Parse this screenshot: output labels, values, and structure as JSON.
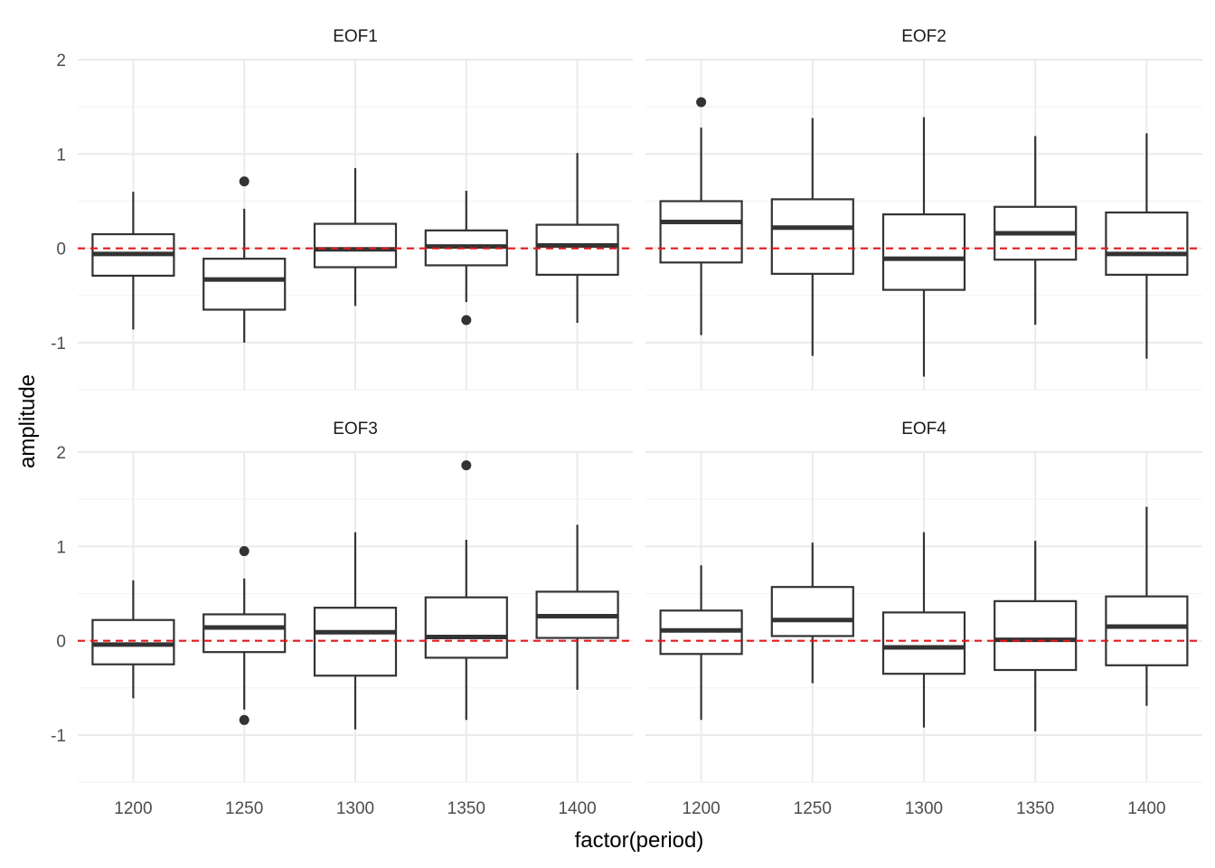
{
  "chart_data": {
    "type": "boxplot",
    "xlabel": "factor(period)",
    "ylabel": "amplitude",
    "categories": [
      "1200",
      "1250",
      "1300",
      "1350",
      "1400"
    ],
    "ylim": [
      -1.5,
      2.0
    ],
    "yticks": [
      -1,
      0,
      1,
      2
    ],
    "grid": true,
    "reference_line": {
      "y": 0,
      "color": "#e31a1c",
      "style": "dashed"
    },
    "box_color": "#333333",
    "facets": [
      {
        "title": "EOF1",
        "boxes": [
          {
            "category": "1200",
            "lower_whisker": -0.86,
            "q1": -0.29,
            "median": -0.06,
            "q3": 0.15,
            "upper_whisker": 0.6,
            "outliers": []
          },
          {
            "category": "1250",
            "lower_whisker": -1.0,
            "q1": -0.65,
            "median": -0.33,
            "q3": -0.11,
            "upper_whisker": 0.42,
            "outliers": [
              0.71
            ]
          },
          {
            "category": "1300",
            "lower_whisker": -0.61,
            "q1": -0.2,
            "median": -0.01,
            "q3": 0.26,
            "upper_whisker": 0.85,
            "outliers": []
          },
          {
            "category": "1350",
            "lower_whisker": -0.57,
            "q1": -0.18,
            "median": 0.02,
            "q3": 0.19,
            "upper_whisker": 0.61,
            "outliers": [
              -0.76
            ]
          },
          {
            "category": "1400",
            "lower_whisker": -0.79,
            "q1": -0.28,
            "median": 0.03,
            "q3": 0.25,
            "upper_whisker": 1.01,
            "outliers": []
          }
        ]
      },
      {
        "title": "EOF2",
        "boxes": [
          {
            "category": "1200",
            "lower_whisker": -0.92,
            "q1": -0.15,
            "median": 0.28,
            "q3": 0.5,
            "upper_whisker": 1.28,
            "outliers": [
              1.55
            ]
          },
          {
            "category": "1250",
            "lower_whisker": -1.14,
            "q1": -0.27,
            "median": 0.22,
            "q3": 0.52,
            "upper_whisker": 1.38,
            "outliers": []
          },
          {
            "category": "1300",
            "lower_whisker": -1.36,
            "q1": -0.44,
            "median": -0.11,
            "q3": 0.36,
            "upper_whisker": 1.39,
            "outliers": []
          },
          {
            "category": "1350",
            "lower_whisker": -0.81,
            "q1": -0.12,
            "median": 0.16,
            "q3": 0.44,
            "upper_whisker": 1.19,
            "outliers": []
          },
          {
            "category": "1400",
            "lower_whisker": -1.17,
            "q1": -0.28,
            "median": -0.06,
            "q3": 0.38,
            "upper_whisker": 1.22,
            "outliers": []
          }
        ]
      },
      {
        "title": "EOF3",
        "boxes": [
          {
            "category": "1200",
            "lower_whisker": -0.61,
            "q1": -0.25,
            "median": -0.04,
            "q3": 0.22,
            "upper_whisker": 0.64,
            "outliers": []
          },
          {
            "category": "1250",
            "lower_whisker": -0.73,
            "q1": -0.12,
            "median": 0.14,
            "q3": 0.28,
            "upper_whisker": 0.66,
            "outliers": [
              0.95,
              -0.84
            ]
          },
          {
            "category": "1300",
            "lower_whisker": -0.94,
            "q1": -0.37,
            "median": 0.09,
            "q3": 0.35,
            "upper_whisker": 1.15,
            "outliers": []
          },
          {
            "category": "1350",
            "lower_whisker": -0.84,
            "q1": -0.18,
            "median": 0.04,
            "q3": 0.46,
            "upper_whisker": 1.07,
            "outliers": [
              1.86
            ]
          },
          {
            "category": "1400",
            "lower_whisker": -0.52,
            "q1": 0.03,
            "median": 0.26,
            "q3": 0.52,
            "upper_whisker": 1.23,
            "outliers": []
          }
        ]
      },
      {
        "title": "EOF4",
        "boxes": [
          {
            "category": "1200",
            "lower_whisker": -0.84,
            "q1": -0.14,
            "median": 0.11,
            "q3": 0.32,
            "upper_whisker": 0.8,
            "outliers": []
          },
          {
            "category": "1250",
            "lower_whisker": -0.45,
            "q1": 0.05,
            "median": 0.22,
            "q3": 0.57,
            "upper_whisker": 1.04,
            "outliers": []
          },
          {
            "category": "1300",
            "lower_whisker": -0.92,
            "q1": -0.35,
            "median": -0.07,
            "q3": 0.3,
            "upper_whisker": 1.15,
            "outliers": []
          },
          {
            "category": "1350",
            "lower_whisker": -0.96,
            "q1": -0.31,
            "median": 0.01,
            "q3": 0.42,
            "upper_whisker": 1.06,
            "outliers": []
          },
          {
            "category": "1400",
            "lower_whisker": -0.69,
            "q1": -0.26,
            "median": 0.15,
            "q3": 0.47,
            "upper_whisker": 1.42,
            "outliers": []
          }
        ]
      }
    ]
  }
}
